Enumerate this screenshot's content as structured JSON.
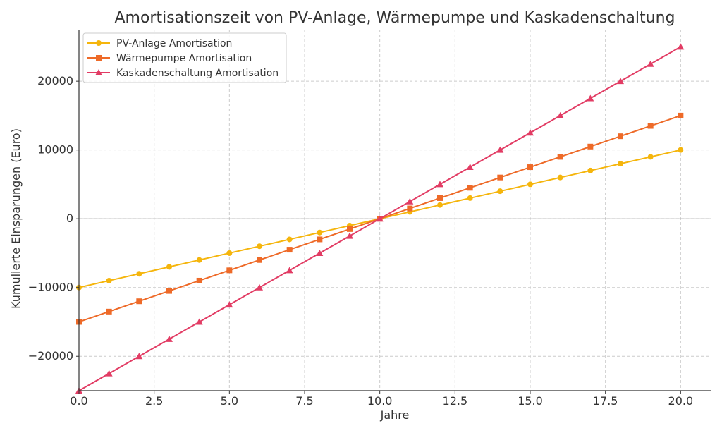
{
  "chart_data": {
    "type": "line",
    "title": "Amortisationszeit von PV-Anlage, Wärmepumpe und Kaskadenschaltung",
    "xlabel": "Jahre",
    "ylabel": "Kumulierte Einsparungen (Euro)",
    "xlim": [
      0,
      21
    ],
    "ylim": [
      -25000,
      27500
    ],
    "xticks": [
      0,
      2.5,
      5,
      7.5,
      10,
      12.5,
      15,
      17.5,
      20
    ],
    "xtick_labels": [
      "0.0",
      "2.5",
      "5.0",
      "7.5",
      "10.0",
      "12.5",
      "15.0",
      "17.5",
      "20.0"
    ],
    "yticks": [
      -20000,
      -10000,
      0,
      10000,
      20000
    ],
    "ytick_labels": [
      "−20000",
      "−10000",
      "0",
      "10000",
      "20000"
    ],
    "grid": true,
    "zero_line": true,
    "legend_position": "top-left",
    "x": [
      0,
      1,
      2,
      3,
      4,
      5,
      6,
      7,
      8,
      9,
      10,
      11,
      12,
      13,
      14,
      15,
      16,
      17,
      18,
      19,
      20
    ],
    "series": [
      {
        "name": "PV-Anlage Amortisation",
        "color": "#f5b50c",
        "marker": "circle",
        "values": [
          -10000,
          -9000,
          -8000,
          -7000,
          -6000,
          -5000,
          -4000,
          -3000,
          -2000,
          -1000,
          0,
          1000,
          2000,
          3000,
          4000,
          5000,
          6000,
          7000,
          8000,
          9000,
          10000
        ]
      },
      {
        "name": "Wärmepumpe Amortisation",
        "color": "#ee6a28",
        "marker": "square",
        "values": [
          -15000,
          -13500,
          -12000,
          -10500,
          -9000,
          -7500,
          -6000,
          -4500,
          -3000,
          -1500,
          0,
          1500,
          3000,
          4500,
          6000,
          7500,
          9000,
          10500,
          12000,
          13500,
          15000
        ]
      },
      {
        "name": "Kaskadenschaltung Amortisation",
        "color": "#e23c64",
        "marker": "triangle",
        "values": [
          -25000,
          -22500,
          -20000,
          -17500,
          -15000,
          -12500,
          -10000,
          -7500,
          -5000,
          -2500,
          0,
          2500,
          5000,
          7500,
          10000,
          12500,
          15000,
          17500,
          20000,
          22500,
          25000
        ]
      }
    ]
  }
}
